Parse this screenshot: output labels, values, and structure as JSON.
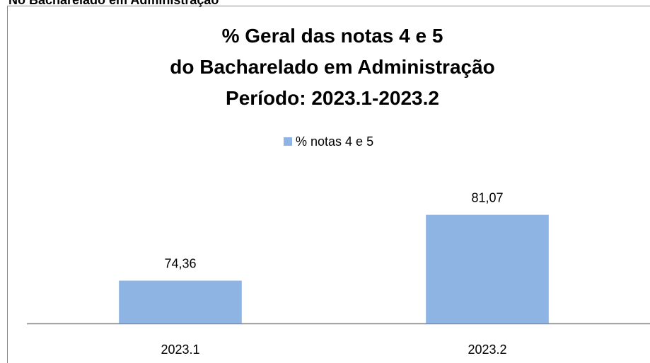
{
  "header": {
    "text": "No Bacharelado em Administração"
  },
  "chart_data": {
    "type": "bar",
    "title": [
      "% Geral das notas 4 e 5",
      "do Bacharelado em Administração",
      "Período: 2023.1-2023.2"
    ],
    "categories": [
      "2023.1",
      "2023.2"
    ],
    "series": [
      {
        "name": "% notas 4 e 5",
        "color": "#8eb4e3",
        "values": [
          74.36,
          81.07
        ],
        "value_labels": [
          "74,36",
          "81,07"
        ]
      }
    ],
    "ylim": [
      70,
      84
    ],
    "legend": "top"
  }
}
